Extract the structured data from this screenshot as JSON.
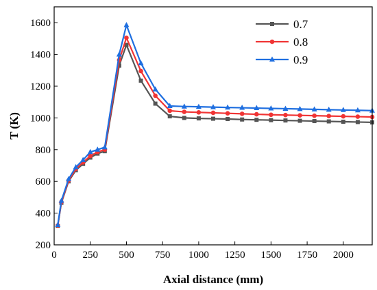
{
  "chart_data": {
    "type": "line",
    "title": "",
    "xlabel": "Axial distance (mm)",
    "ylabel": "T (K)",
    "xlim": [
      0,
      2200
    ],
    "ylim": [
      200,
      1700
    ],
    "xticks": [
      0,
      250,
      500,
      750,
      1000,
      1250,
      1500,
      1750,
      2000
    ],
    "yticks": [
      200,
      400,
      600,
      800,
      1000,
      1200,
      1400,
      1600
    ],
    "grid": false,
    "legend_position": "top-right",
    "series": [
      {
        "name": "0.7",
        "color": "#555555",
        "marker": "square",
        "points": [
          [
            25,
            320
          ],
          [
            50,
            465
          ],
          [
            100,
            600
          ],
          [
            150,
            670
          ],
          [
            200,
            710
          ],
          [
            250,
            750
          ],
          [
            300,
            775
          ],
          [
            350,
            790
          ],
          [
            450,
            1330
          ],
          [
            500,
            1460
          ],
          [
            600,
            1235
          ],
          [
            700,
            1090
          ],
          [
            800,
            1010
          ],
          [
            900,
            1000
          ],
          [
            1000,
            997
          ],
          [
            1100,
            995
          ],
          [
            1200,
            993
          ],
          [
            1300,
            990
          ],
          [
            1400,
            988
          ],
          [
            1500,
            986
          ],
          [
            1600,
            984
          ],
          [
            1700,
            982
          ],
          [
            1800,
            980
          ],
          [
            1900,
            978
          ],
          [
            2000,
            976
          ],
          [
            2100,
            974
          ],
          [
            2200,
            972
          ]
        ]
      },
      {
        "name": "0.8",
        "color": "#f03434",
        "marker": "circle",
        "points": [
          [
            25,
            322
          ],
          [
            50,
            470
          ],
          [
            100,
            605
          ],
          [
            150,
            678
          ],
          [
            200,
            720
          ],
          [
            250,
            760
          ],
          [
            300,
            785
          ],
          [
            350,
            800
          ],
          [
            450,
            1365
          ],
          [
            500,
            1505
          ],
          [
            600,
            1295
          ],
          [
            700,
            1140
          ],
          [
            800,
            1045
          ],
          [
            900,
            1038
          ],
          [
            1000,
            1035
          ],
          [
            1100,
            1032
          ],
          [
            1200,
            1029
          ],
          [
            1300,
            1026
          ],
          [
            1400,
            1023
          ],
          [
            1500,
            1020
          ],
          [
            1600,
            1018
          ],
          [
            1700,
            1016
          ],
          [
            1800,
            1014
          ],
          [
            1900,
            1012
          ],
          [
            2000,
            1010
          ],
          [
            2100,
            1008
          ],
          [
            2200,
            1006
          ]
        ]
      },
      {
        "name": "0.9",
        "color": "#1f6fe0",
        "marker": "triangle",
        "points": [
          [
            25,
            325
          ],
          [
            50,
            478
          ],
          [
            100,
            615
          ],
          [
            150,
            690
          ],
          [
            200,
            735
          ],
          [
            250,
            785
          ],
          [
            300,
            800
          ],
          [
            350,
            815
          ],
          [
            450,
            1400
          ],
          [
            500,
            1585
          ],
          [
            600,
            1345
          ],
          [
            700,
            1180
          ],
          [
            800,
            1075
          ],
          [
            900,
            1072
          ],
          [
            1000,
            1070
          ],
          [
            1100,
            1068
          ],
          [
            1200,
            1066
          ],
          [
            1300,
            1064
          ],
          [
            1400,
            1062
          ],
          [
            1500,
            1060
          ],
          [
            1600,
            1058
          ],
          [
            1700,
            1056
          ],
          [
            1800,
            1054
          ],
          [
            1900,
            1052
          ],
          [
            2000,
            1050
          ],
          [
            2100,
            1048
          ],
          [
            2200,
            1046
          ]
        ]
      }
    ]
  }
}
